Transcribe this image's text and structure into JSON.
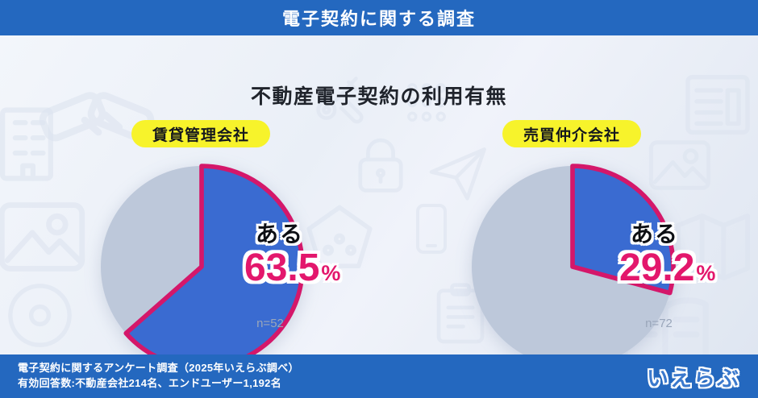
{
  "header": {
    "title": "電子契約に関する調査"
  },
  "main": {
    "title": "不動産電子契約の利用有無"
  },
  "charts": [
    {
      "badge": "賃貸管理会社",
      "answer_label": "ある",
      "value": "63.5",
      "unit": "%",
      "n_label": "n=52"
    },
    {
      "badge": "売買仲介会社",
      "answer_label": "ある",
      "value": "29.2",
      "unit": "%",
      "n_label": "n=72"
    }
  ],
  "footer": {
    "line1": "電子契約に関するアンケート調査（2025年いえらぶ調べ）",
    "line2": "有効回答数:不動産会社214名、エンドユーザー1,192名",
    "logo": "いえらぶ"
  },
  "colors": {
    "header-blue": "#2468bf",
    "accent-blue": "#3a6bd1",
    "accent-pink": "#d4176a",
    "value-pink": "#e3176c",
    "badge-yellow": "#f7f32b",
    "pie-gray": "#bdc8da",
    "pie-gray-light": "#c9d3e2",
    "n-gray": "#9aa6ba",
    "title-dark": "#20242c",
    "watermark": "#dde4f0"
  },
  "chart_data": [
    {
      "type": "pie",
      "group": "賃貸管理会社",
      "title": "不動産電子契約の利用有無",
      "series": [
        {
          "label": "ある",
          "value": 63.5
        },
        {
          "label": "",
          "value": 36.5
        }
      ],
      "n": 52,
      "start_angle_deg": 0,
      "direction": "clockwise"
    },
    {
      "type": "pie",
      "group": "売買仲介会社",
      "title": "不動産電子契約の利用有無",
      "series": [
        {
          "label": "ある",
          "value": 29.2
        },
        {
          "label": "",
          "value": 70.8
        }
      ],
      "n": 72,
      "start_angle_deg": 0,
      "direction": "clockwise"
    }
  ]
}
